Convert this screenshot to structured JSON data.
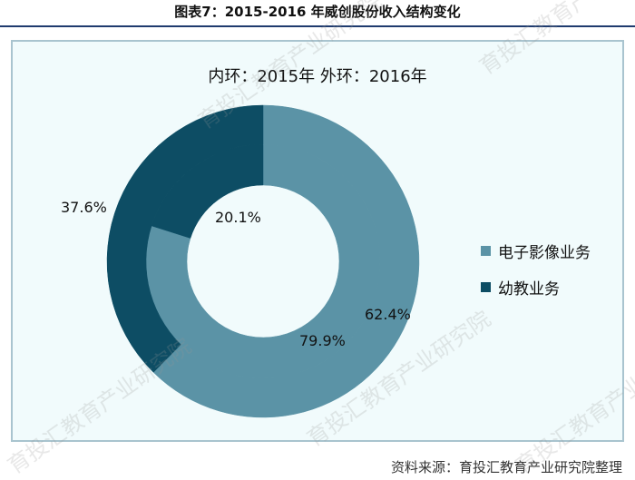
{
  "figure_title": "图表7：2015-2016 年威创股份收入结构变化",
  "chart_data": {
    "type": "pie",
    "subtitle": "内环：2015年  外环：2016年",
    "categories": [
      "电子影像业务",
      "幼教业务"
    ],
    "colors": [
      "#5b93a6",
      "#0d4d64"
    ],
    "rings": [
      {
        "year": "2015年",
        "values": [
          79.9,
          20.1
        ],
        "labels": [
          "79.9%",
          "20.1%"
        ]
      },
      {
        "year": "2016年",
        "values": [
          62.4,
          37.6
        ],
        "labels": [
          "62.4%",
          "37.6%"
        ]
      }
    ],
    "legend_position": "right"
  },
  "source_text": "资料来源：育投汇教育产业研究院整理",
  "watermark_text": "育投汇教育产业研究院"
}
